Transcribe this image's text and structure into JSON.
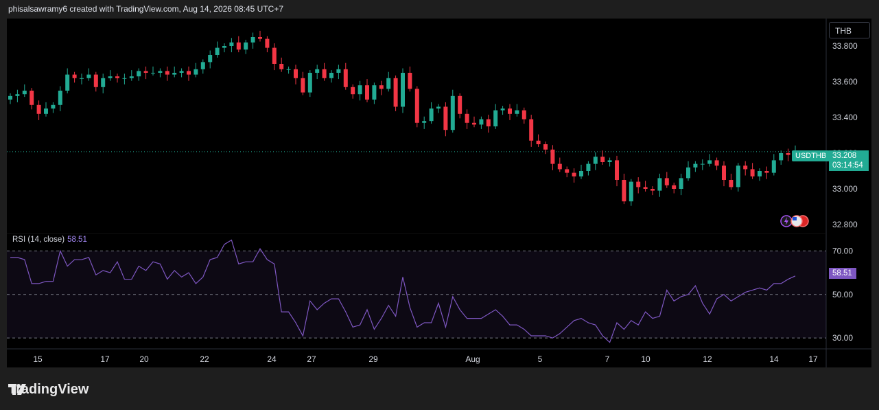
{
  "header": {
    "attribution": "phisalsawramy6 created with TradingView.com, Aug 14, 2026 08:45 UTC+7"
  },
  "currency": "THB",
  "symbol_tag": "USDTHB",
  "last_price": "33.208",
  "countdown": "03:14:54",
  "rsi": {
    "label": "RSI (14, close)",
    "value": "58.51"
  },
  "brand": {
    "name": "TradingView"
  },
  "colors": {
    "up": "#22ab94",
    "down": "#f23645",
    "rsi_line": "#7e57c2",
    "background": "#000000"
  },
  "chart_data": [
    {
      "type": "candlestick",
      "title": "",
      "ylim": [
        32.75,
        33.95
      ],
      "y_ticks": [
        "33.800",
        "33.600",
        "33.400",
        "33.200",
        "33.000",
        "32.800"
      ],
      "x_tick_labels": [
        "15",
        "17",
        "20",
        "22",
        "24",
        "27",
        "29",
        "Aug",
        "5",
        "7",
        "10",
        "12",
        "14",
        "17"
      ],
      "last_value": 33.208,
      "close": [
        33.52,
        33.53,
        33.55,
        33.47,
        33.42,
        33.45,
        33.47,
        33.55,
        33.64,
        33.62,
        33.62,
        33.64,
        33.57,
        33.62,
        33.63,
        33.62,
        33.62,
        33.63,
        33.66,
        33.65,
        33.65,
        33.66,
        33.64,
        33.65,
        33.66,
        33.64,
        33.67,
        33.71,
        33.75,
        33.79,
        33.8,
        33.82,
        33.78,
        33.82,
        33.85,
        33.84,
        33.79,
        33.7,
        33.67,
        33.67,
        33.62,
        33.54,
        33.65,
        33.67,
        33.62,
        33.65,
        33.67,
        33.57,
        33.53,
        33.58,
        33.5,
        33.58,
        33.56,
        33.62,
        33.46,
        33.65,
        33.56,
        33.37,
        33.38,
        33.45,
        33.46,
        33.33,
        33.52,
        33.42,
        33.37,
        33.36,
        33.39,
        33.35,
        33.44,
        33.45,
        33.42,
        33.44,
        33.39,
        33.27,
        33.25,
        33.22,
        33.14,
        33.11,
        33.09,
        33.07,
        33.1,
        33.14,
        33.18,
        33.15,
        33.16,
        33.05,
        32.93,
        33.04,
        33.01,
        33.0,
        32.99,
        33.06,
        33.02,
        33.0,
        33.06,
        33.12,
        33.14,
        33.14,
        33.16,
        33.13,
        33.05,
        33.01,
        33.13,
        33.11,
        33.07,
        33.1,
        33.09,
        33.16,
        33.2,
        33.19,
        33.208
      ],
      "rsi": {
        "name": "RSI (14, close)",
        "levels": [
          70,
          50,
          30
        ],
        "ylim": [
          25,
          78
        ],
        "values": [
          67,
          67,
          66,
          55,
          55,
          56,
          56,
          70,
          63,
          66,
          66,
          67,
          59,
          61,
          60,
          65,
          57,
          57,
          63,
          61,
          65,
          64,
          57,
          61,
          58,
          60,
          55,
          58,
          66,
          67,
          73,
          75,
          64,
          65,
          65,
          71,
          66,
          64,
          42,
          42,
          37,
          31,
          47,
          43,
          46,
          48,
          48,
          42,
          35,
          36,
          43,
          34,
          39,
          45,
          40,
          58,
          44,
          35,
          37,
          37,
          46,
          35,
          49,
          43,
          39,
          39,
          39,
          41,
          43,
          40,
          36,
          36,
          34,
          31,
          31,
          31,
          30,
          32,
          35,
          38,
          39,
          37,
          36,
          31,
          28,
          37,
          34,
          38,
          36,
          42,
          39,
          40,
          52,
          47,
          49,
          50,
          54,
          46,
          41,
          48,
          50,
          47,
          49,
          51,
          52,
          53,
          52,
          55,
          55,
          57,
          58.51
        ]
      }
    }
  ]
}
